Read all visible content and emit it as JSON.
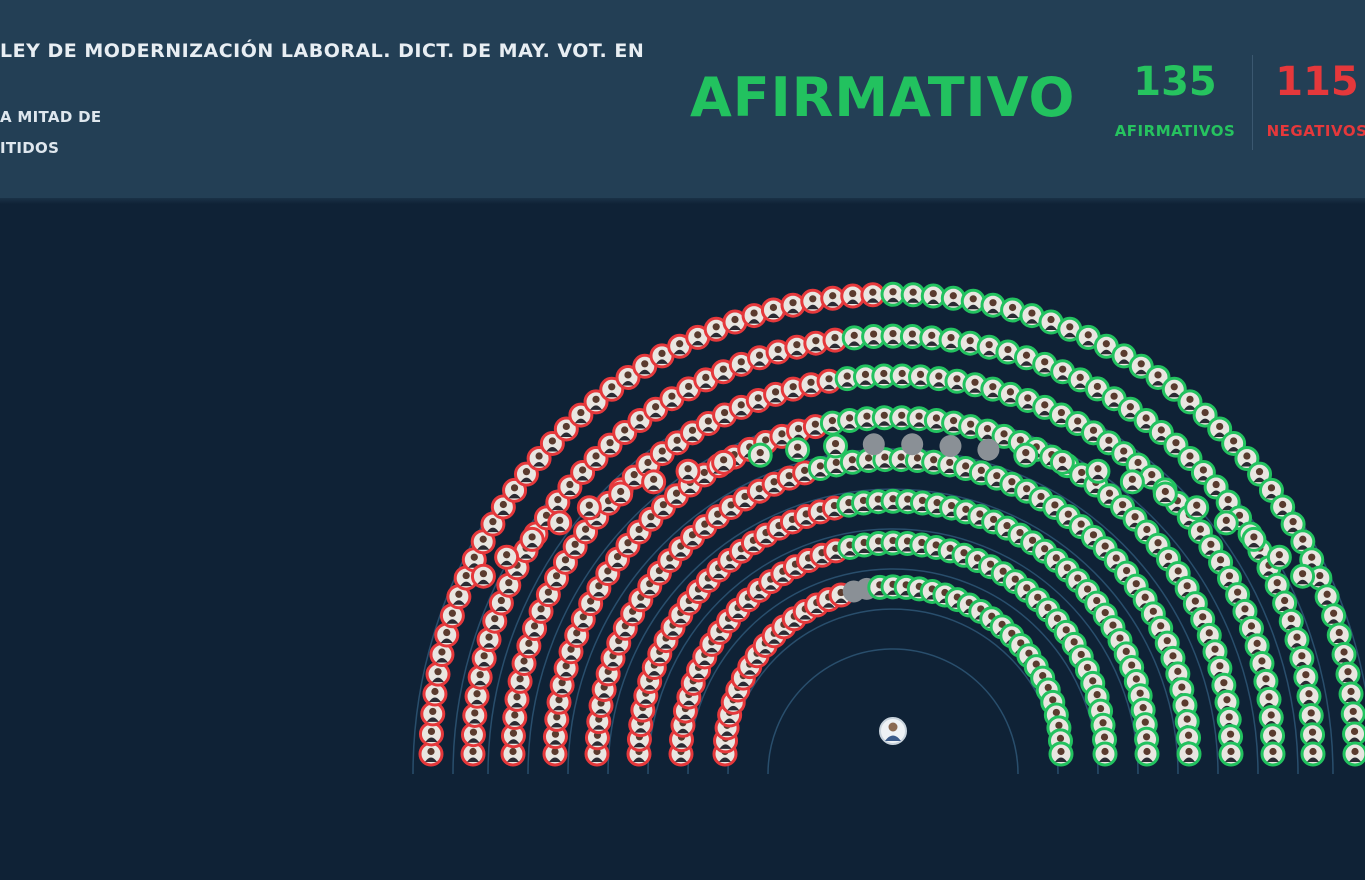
{
  "header": {
    "title": "LEY DE MODERNIZACIÓN LABORAL. DICT. DE MAY. VOT. EN",
    "majority_line_1": "A MITAD DE",
    "majority_line_2": "ITIDOS",
    "result": "AFIRMATIVO",
    "yes_count": "135",
    "yes_label": "AFIRMATIVOS",
    "no_count": "115",
    "no_label": "NEGATIVOS"
  },
  "colors": {
    "background": "#0f2236",
    "header": "#233f55",
    "affirmative": "#22c25f",
    "negative": "#e5383b",
    "empty_seat": "#8a9096",
    "arc_line": "#2f5a7a"
  },
  "chamber": {
    "legend_note": "seats colored by vote: green affirmative, red negative, gray absent",
    "rows": [
      {
        "votes": "RRRRRRRRRRRRRRRRRRRRRRRRRRRRRRRRRRRRGGGGGGGGGGGGGGGGGGGGGGGGGGGGGGGGGGGGG"
      },
      {
        "votes": "RRRRRRRRRRRRRRRRRRRRRRRRRRRRRRRRGGGGGGGGGGGGGGGGGGGGGGGGGGGGGGGGGGGGG"
      },
      {
        "votes": "RRRRRRRRRRRRRRRRRRRRRRRRRRRRRRGGGGGGGGGGGGGGGGGGGGGGGGGGGGGGGGGGGG"
      },
      {
        "votes": "RRRRRRRRRRRRRRRRRRRRRRRRRRRGGGGGGGGGGGGGGGGGGGGGGGGGGGGGGGGGGG"
      },
      {
        "votes": "RRRRRRRRRRRRRRRRRRRRRRRRGGGGGGGGGGGGGGGGGGGGGGGGGGGGGGGGGG"
      },
      {
        "votes": "RRRRRRRRRRRRRRRRRRRRRRRRGGGGGGGGGGGGGGGGGGGGGGGGGGGGGGG"
      },
      {
        "votes": "RRRRRRRRRRRRRRRRRRRRGGGGGGGGGGGGGGGGGGGGGGGGGGG"
      },
      {
        "votes": "RRRRRRRRRRRRRRRRRXXGGGGGGGGGGGGGGGGGGGGGG"
      }
    ],
    "top_row": {
      "votes": "RRRRRRRRRGGGXXXXGGGGGGGGGG"
    },
    "president_seat": "speaker-avatar"
  }
}
